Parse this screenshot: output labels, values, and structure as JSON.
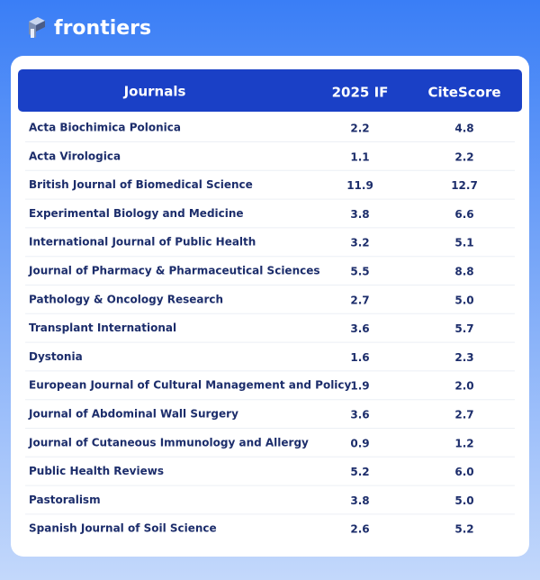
{
  "logo": "frontiers",
  "table": {
    "headers": [
      "Journals",
      "2025 IF",
      "CiteScore"
    ],
    "rows": [
      [
        "Acta Biochimica Polonica",
        "2.2",
        "4.8"
      ],
      [
        "Acta Virologica",
        "1.1",
        "2.2"
      ],
      [
        "British Journal of Biomedical Science",
        "11.9",
        "12.7"
      ],
      [
        "Experimental Biology and Medicine",
        "3.8",
        "6.6"
      ],
      [
        "International Journal of Public Health",
        "3.2",
        "5.1"
      ],
      [
        "Journal of Pharmacy & Pharmaceutical Sciences",
        "5.5",
        "8.8"
      ],
      [
        "Pathology & Oncology Research",
        "2.7",
        "5.0"
      ],
      [
        "Transplant International",
        "3.6",
        "5.7"
      ],
      [
        "Dystonia",
        "1.6",
        "2.3"
      ],
      [
        "European Journal of Cultural Management and Policy",
        "1.9",
        "2.0"
      ],
      [
        "Journal of Abdominal Wall Surgery",
        "3.6",
        "2.7"
      ],
      [
        "Journal of Cutaneous Immunology and Allergy",
        "0.9",
        "1.2"
      ],
      [
        "Public Health Reviews",
        "5.2",
        "6.0"
      ],
      [
        "Pastoralism",
        "3.8",
        "5.0"
      ],
      [
        "Spanish Journal of Soil Science",
        "2.6",
        "5.2"
      ]
    ]
  }
}
